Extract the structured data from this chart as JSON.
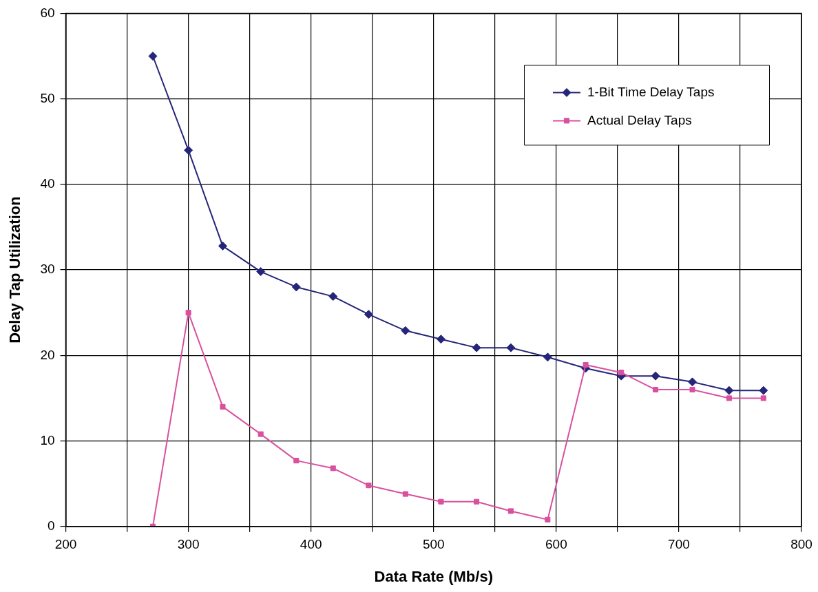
{
  "chart_data": {
    "type": "line",
    "xlabel": "Data Rate (Mb/s)",
    "ylabel": "Delay Tap Utilization",
    "x": [
      271,
      300,
      328,
      359,
      388,
      418,
      447,
      477,
      506,
      535,
      563,
      593,
      624,
      653,
      681,
      711,
      741,
      769
    ],
    "series": [
      {
        "name": "1-Bit Time Delay Taps",
        "color": "#25257a",
        "marker": "diamond",
        "values": [
          55,
          44,
          32.8,
          29.8,
          28,
          26.9,
          24.8,
          22.9,
          21.9,
          20.9,
          20.9,
          19.8,
          18.5,
          17.6,
          17.6,
          16.9,
          15.9,
          15.9
        ]
      },
      {
        "name": "Actual Delay Taps",
        "color": "#d9509e",
        "marker": "square",
        "values": [
          0,
          25,
          14,
          10.8,
          7.7,
          6.8,
          4.8,
          3.8,
          2.9,
          2.9,
          1.8,
          0.8,
          18.9,
          18,
          16,
          16,
          15,
          15
        ]
      }
    ],
    "xlim": [
      200,
      800
    ],
    "xticks": [
      200,
      {
        "value": 250,
        "label": null
      },
      300,
      {
        "value": 350,
        "label": null
      },
      400,
      {
        "value": 450,
        "label": null
      },
      500,
      {
        "value": 550,
        "label": null
      },
      600,
      {
        "value": 650,
        "label": null
      },
      700,
      {
        "value": 750,
        "label": null
      },
      800
    ],
    "ylim": [
      0,
      60
    ],
    "yticks": [
      0,
      10,
      20,
      30,
      40,
      50,
      60
    ],
    "grid": true,
    "legend": "top right",
    "line_style": "solid"
  }
}
